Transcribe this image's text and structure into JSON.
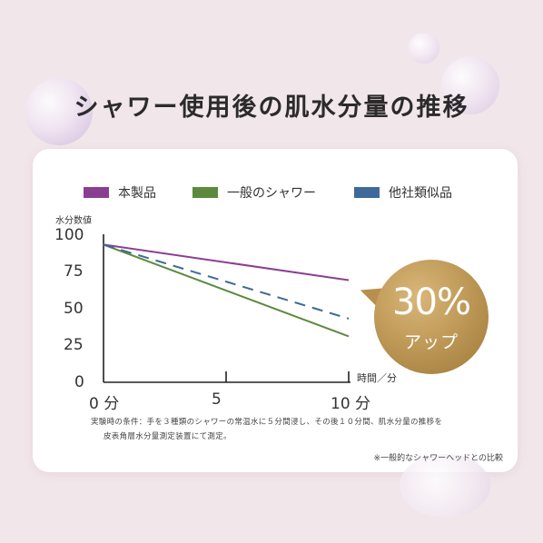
{
  "title": "シャワー使用後の肌水分量の推移",
  "colors": {
    "series1": "#8a3e92",
    "series2": "#5b8a3c",
    "series3": "#3e6a9a",
    "badge": "#b48f4f"
  },
  "chart_data": {
    "type": "line",
    "ylabel": "水分数値",
    "xlabel": "時間／分",
    "ylim": [
      0,
      100
    ],
    "xlim": [
      0,
      10
    ],
    "yticks": [
      "100",
      "75",
      "50",
      "25",
      "0"
    ],
    "xticks": [
      "0 分",
      "5",
      "10 分"
    ],
    "x": [
      0,
      10
    ],
    "series": [
      {
        "name": "本製品",
        "values": [
          93,
          69
        ],
        "color": "#8a3e92",
        "dash": false
      },
      {
        "name": "一般のシャワー",
        "values": [
          93,
          31
        ],
        "color": "#5b8a3c",
        "dash": false
      },
      {
        "name": "他社類似品",
        "values": [
          93,
          43
        ],
        "color": "#3e6a9a",
        "dash": true
      }
    ],
    "grid": false,
    "legend": "top"
  },
  "badge": {
    "value": "30%",
    "label": "アップ"
  },
  "note_lines": [
    "実験時の条件：手を３種類のシャワーの常温水に５分間浸し、その後１０分間、肌水分量の推移を",
    "皮表角層水分量測定装置にて測定。"
  ],
  "footnote": "※一般的なシャワーヘッドとの比較"
}
